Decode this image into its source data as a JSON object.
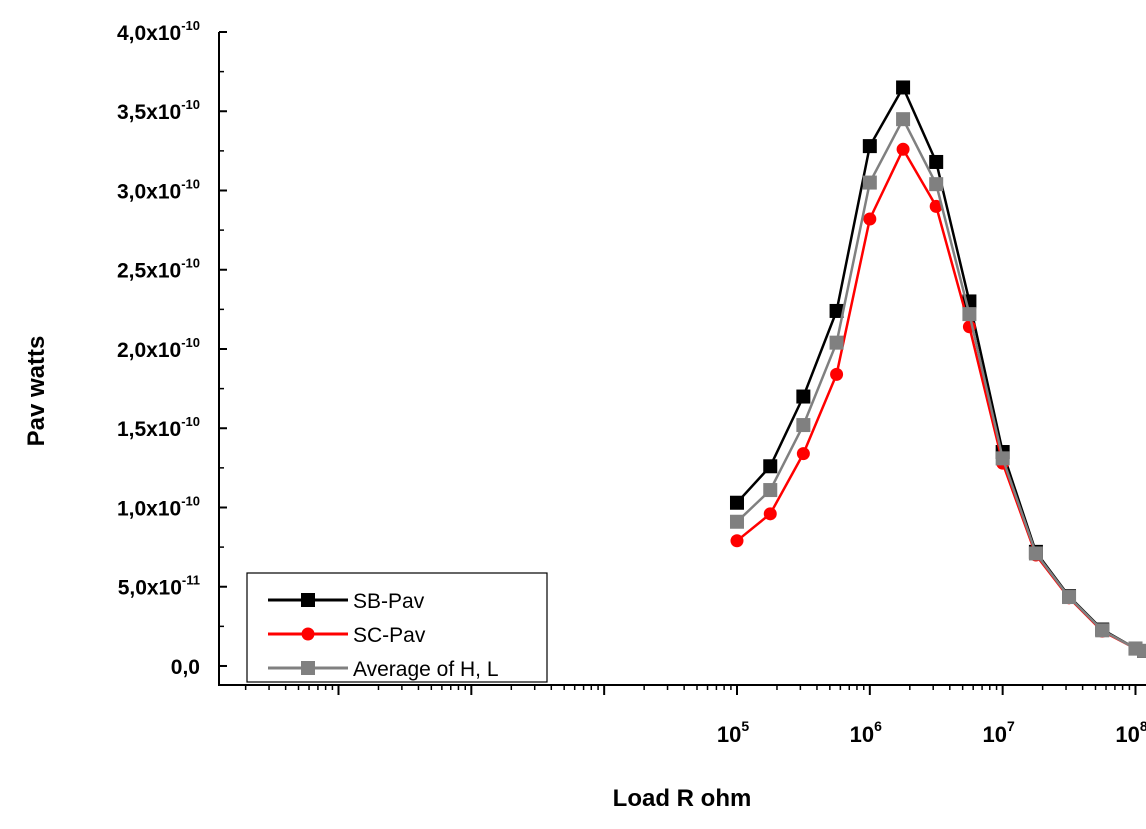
{
  "chart_data": {
    "type": "line",
    "xlabel": "Load R ohm",
    "ylabel": "Pav watts",
    "x_scale": "log",
    "xlim": [
      12.6,
      120000000
    ],
    "ylim": [
      -1.2e-11,
      4e-10
    ],
    "grid": false,
    "legend_position": "bottom-left",
    "y_ticks": [
      {
        "value": 4e-10,
        "mantissa": "4,0x10",
        "exponent": "-10"
      },
      {
        "value": 3.5e-10,
        "mantissa": "3,5x10",
        "exponent": "-10"
      },
      {
        "value": 3e-10,
        "mantissa": "3,0x10",
        "exponent": "-10"
      },
      {
        "value": 2.5e-10,
        "mantissa": "2,5x10",
        "exponent": "-10"
      },
      {
        "value": 2e-10,
        "mantissa": "2,0x10",
        "exponent": "-10"
      },
      {
        "value": 1.5e-10,
        "mantissa": "1,5x10",
        "exponent": "-10"
      },
      {
        "value": 1e-10,
        "mantissa": "1,0x10",
        "exponent": "-10"
      },
      {
        "value": 5e-11,
        "mantissa": "5,0x10",
        "exponent": "-11"
      },
      {
        "value": 0,
        "mantissa": "0,0",
        "exponent": ""
      }
    ],
    "x_ticks": [
      {
        "value": 100000,
        "base": "10",
        "exponent": "5"
      },
      {
        "value": 1000000,
        "base": "10",
        "exponent": "6"
      },
      {
        "value": 10000000,
        "base": "10",
        "exponent": "7"
      },
      {
        "value": 100000000,
        "base": "10",
        "exponent": "8"
      }
    ],
    "x": [
      100000,
      178000,
      316000,
      562000,
      1000000,
      1780000,
      3160000,
      5620000,
      10000000,
      17800000,
      31600000,
      56200000,
      100000000,
      116000000
    ],
    "series": [
      {
        "name": "SB-Pav",
        "color": "#000000",
        "marker": "square",
        "values": [
          1.03e-10,
          1.26e-10,
          1.7e-10,
          2.24e-10,
          3.28e-10,
          3.65e-10,
          3.18e-10,
          2.3e-10,
          1.35e-10,
          7.2e-11,
          4.4e-11,
          2.3e-11,
          1.1e-11,
          9.5e-12
        ]
      },
      {
        "name": "SC-Pav",
        "color": "#ff0000",
        "marker": "circle",
        "values": [
          7.9e-11,
          9.6e-11,
          1.34e-10,
          1.84e-10,
          2.82e-10,
          3.26e-10,
          2.9e-10,
          2.14e-10,
          1.28e-10,
          7e-11,
          4.3e-11,
          2.2e-11,
          1.1e-11,
          9.5e-12
        ]
      },
      {
        "name": "Average of H, L",
        "color": "#808080",
        "marker": "square",
        "values": [
          9.1e-11,
          1.11e-10,
          1.52e-10,
          2.04e-10,
          3.05e-10,
          3.45e-10,
          3.04e-10,
          2.22e-10,
          1.31e-10,
          7.1e-11,
          4.35e-11,
          2.25e-11,
          1.1e-11,
          9.5e-12
        ]
      }
    ]
  }
}
